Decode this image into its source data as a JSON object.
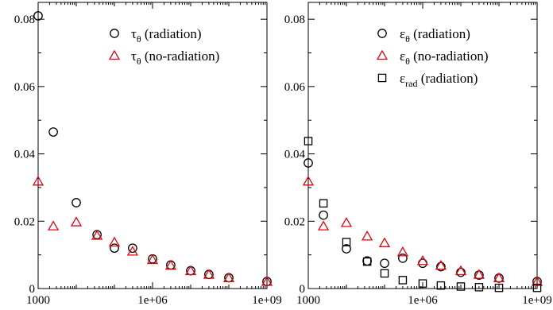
{
  "chart_data": [
    {
      "type": "scatter",
      "x_scale": "log",
      "xlim": [
        1000,
        1000000000
      ],
      "ylim": [
        0,
        0.085
      ],
      "x_tick_labels": [
        "1000",
        "1e+06",
        "1e+09"
      ],
      "y_tick_labels": [
        "0",
        "0.02",
        "0.04",
        "0.06",
        "0.08"
      ],
      "legend_position": "top-right",
      "series": [
        {
          "symbol": "τ",
          "subscript": "θ",
          "suffix": "(radiation)",
          "marker": "circle",
          "color": "#000000",
          "x": [
            1000,
            2500,
            10000,
            35000,
            100000,
            300000,
            1000000,
            3000000,
            10000000,
            30000000,
            100000000,
            1000000000
          ],
          "y": [
            0.081,
            0.0465,
            0.0255,
            0.016,
            0.012,
            0.012,
            0.0088,
            0.007,
            0.0053,
            0.0042,
            0.0032,
            0.0021
          ]
        },
        {
          "symbol": "τ",
          "subscript": "θ",
          "suffix": "(no-radiation)",
          "marker": "triangle",
          "color": "#e8000b",
          "x": [
            1000,
            2500,
            10000,
            35000,
            100000,
            300000,
            1000000,
            3000000,
            10000000,
            30000000,
            100000000,
            1000000000
          ],
          "y": [
            0.0318,
            0.0185,
            0.0197,
            0.0157,
            0.0137,
            0.011,
            0.0085,
            0.0068,
            0.0052,
            0.0041,
            0.0031,
            0.002
          ]
        }
      ]
    },
    {
      "type": "scatter",
      "x_scale": "log",
      "xlim": [
        1000,
        1000000000
      ],
      "ylim": [
        0,
        0.085
      ],
      "x_tick_labels": [
        "1000",
        "1e+06",
        "1e+09"
      ],
      "y_tick_labels": [
        "0",
        "0.02",
        "0.04",
        "0.06",
        "0.08"
      ],
      "legend_position": "top-right",
      "series": [
        {
          "symbol": "ε",
          "subscript": "θ",
          "suffix": "(radiation)",
          "marker": "circle",
          "color": "#000000",
          "x": [
            1000,
            2500,
            10000,
            35000,
            100000,
            300000,
            1000000,
            3000000,
            10000000,
            30000000,
            100000000,
            1000000000
          ],
          "y": [
            0.0373,
            0.0218,
            0.0118,
            0.0082,
            0.0075,
            0.009,
            0.0075,
            0.0065,
            0.0048,
            0.004,
            0.0031,
            0.0021
          ]
        },
        {
          "symbol": "ε",
          "subscript": "θ",
          "suffix": "(no-radiation)",
          "marker": "triangle",
          "color": "#e8000b",
          "x": [
            1000,
            2500,
            10000,
            35000,
            100000,
            300000,
            1000000,
            3000000,
            10000000,
            30000000,
            100000000,
            1000000000
          ],
          "y": [
            0.0318,
            0.0185,
            0.0195,
            0.0155,
            0.0135,
            0.0108,
            0.0082,
            0.0068,
            0.0052,
            0.0041,
            0.0031,
            0.002
          ]
        },
        {
          "symbol": "ε",
          "subscript": "rad",
          "suffix": "(radiation)",
          "marker": "square",
          "color": "#000000",
          "x": [
            1000,
            2500,
            10000,
            35000,
            100000,
            300000,
            1000000,
            3000000,
            10000000,
            30000000,
            100000000,
            1000000000
          ],
          "y": [
            0.0438,
            0.0253,
            0.0138,
            0.008,
            0.0045,
            0.0025,
            0.0015,
            0.0009,
            0.0006,
            0.0004,
            0.0002,
            0.0002
          ]
        }
      ]
    }
  ]
}
